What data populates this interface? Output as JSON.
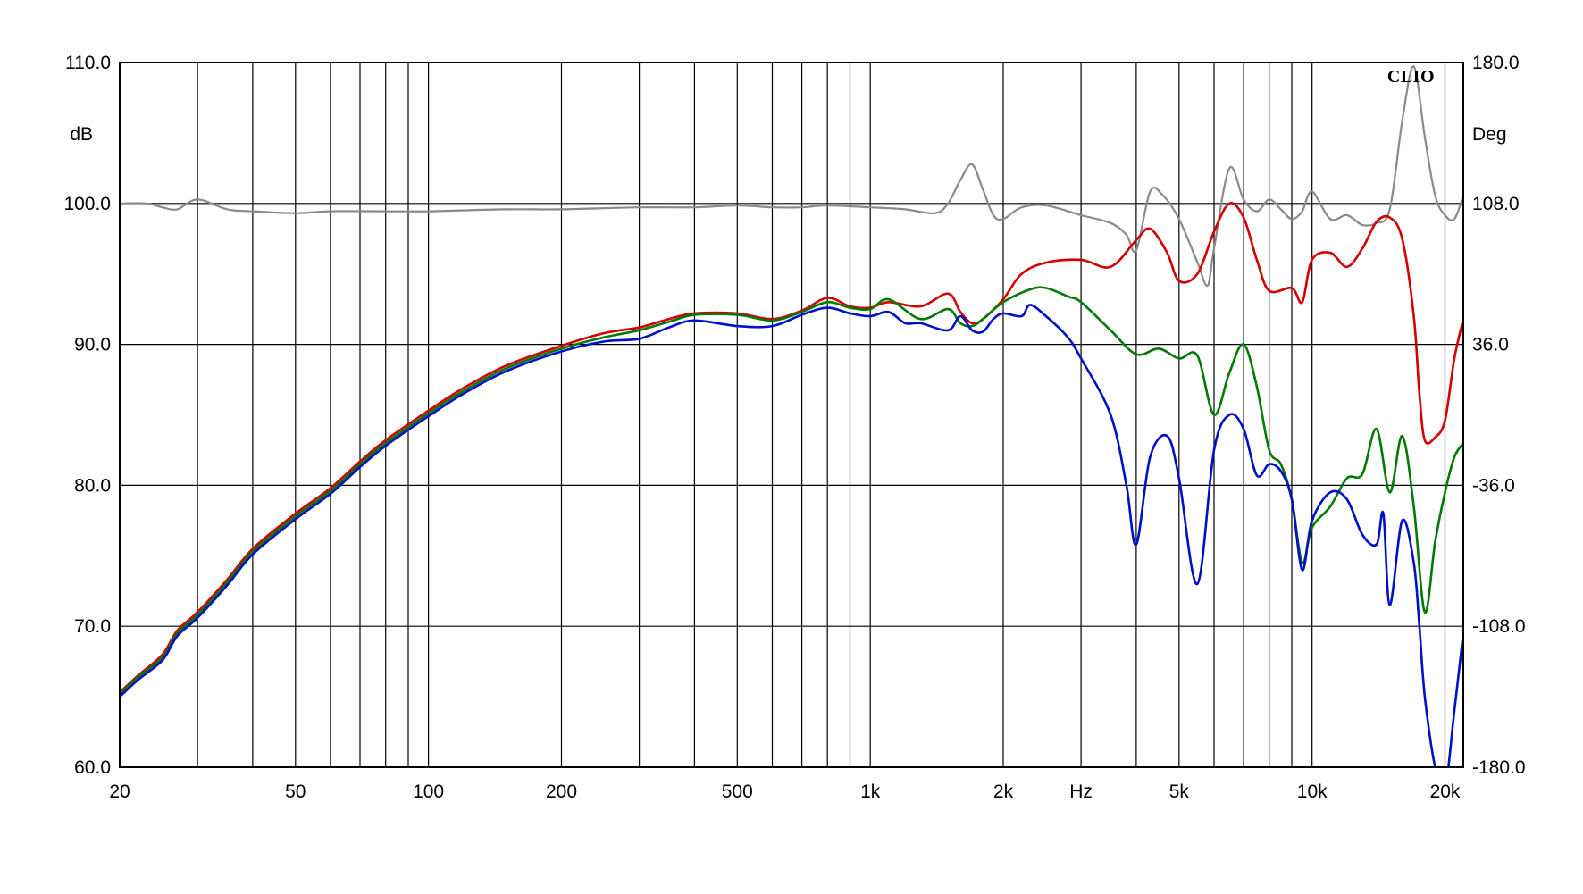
{
  "chart_data": {
    "type": "line",
    "brand": "CLIO",
    "xscale": "log",
    "xlim": [
      20,
      22000
    ],
    "ylim": [
      60,
      110
    ],
    "y2lim": [
      -180,
      180
    ],
    "ylabel_unit": "dB",
    "y2label_unit": "Deg",
    "xlabel_unit": "Hz",
    "x_tick_labels": [
      "20",
      "50",
      "100",
      "200",
      "500",
      "1k",
      "2k",
      "Hz",
      "5k",
      "10k",
      "20k"
    ],
    "x_tick_values": [
      20,
      50,
      100,
      200,
      500,
      1000,
      2000,
      3000,
      5000,
      10000,
      20000
    ],
    "y_tick_labels": [
      "110.0",
      "100.0",
      "90.0",
      "80.0",
      "70.0",
      "60.0"
    ],
    "y_tick_values": [
      110,
      100,
      90,
      80,
      70,
      60
    ],
    "y2_tick_labels": [
      "180.0",
      "108.0",
      "36.0",
      "-36.0",
      "-108.0",
      "-180.0"
    ],
    "y2_tick_values": [
      180,
      108,
      36,
      -36,
      -108,
      -180
    ],
    "x_grid": [
      20,
      30,
      40,
      50,
      60,
      70,
      80,
      90,
      100,
      200,
      300,
      400,
      500,
      600,
      700,
      800,
      900,
      1000,
      2000,
      3000,
      4000,
      5000,
      6000,
      7000,
      8000,
      9000,
      10000,
      20000
    ],
    "grid": true,
    "colors": {
      "red": "#d40000",
      "green": "#007a00",
      "blue": "#0010c8",
      "gray": "#8a8a8a"
    },
    "series": [
      {
        "color": "red",
        "axis": "left",
        "x": [
          20,
          22,
          25,
          27,
          30,
          35,
          40,
          50,
          60,
          70,
          80,
          100,
          120,
          150,
          200,
          250,
          300,
          350,
          400,
          500,
          600,
          700,
          800,
          900,
          1000,
          1100,
          1300,
          1500,
          1600,
          1700,
          1800,
          2000,
          2200,
          2500,
          3000,
          3500,
          4000,
          4300,
          4700,
          5000,
          5500,
          6000,
          6500,
          7000,
          7500,
          8000,
          9000,
          9500,
          10000,
          11000,
          12000,
          13000,
          14000,
          15000,
          16000,
          17000,
          17500,
          18000,
          19000,
          20000,
          21000,
          22000
        ],
        "y": [
          65.3,
          66.5,
          68.0,
          69.7,
          71.0,
          73.3,
          75.5,
          78.0,
          79.8,
          81.7,
          83.2,
          85.3,
          86.9,
          88.5,
          89.9,
          90.8,
          91.2,
          91.8,
          92.2,
          92.2,
          91.8,
          92.4,
          93.3,
          92.7,
          92.6,
          93.0,
          92.7,
          93.6,
          92.3,
          91.5,
          91.8,
          93.2,
          95.0,
          95.8,
          96.0,
          95.5,
          97.4,
          98.2,
          96.5,
          94.5,
          95.0,
          98.0,
          100.0,
          99.0,
          96.0,
          93.8,
          94.0,
          93.0,
          96.0,
          96.5,
          95.5,
          96.8,
          98.7,
          99.0,
          97.5,
          92.0,
          86.5,
          83.2,
          83.4,
          84.6,
          89.0,
          91.8
        ]
      },
      {
        "color": "green",
        "axis": "left",
        "x": [
          20,
          22,
          25,
          27,
          30,
          35,
          40,
          50,
          60,
          70,
          80,
          100,
          120,
          150,
          200,
          250,
          300,
          350,
          400,
          500,
          600,
          700,
          800,
          900,
          1000,
          1100,
          1300,
          1500,
          1600,
          1700,
          1800,
          2000,
          2300,
          2500,
          2800,
          3000,
          3500,
          4000,
          4500,
          5000,
          5500,
          6000,
          6500,
          7000,
          7500,
          8000,
          8500,
          9000,
          9500,
          10000,
          11000,
          12000,
          13000,
          14000,
          15000,
          16000,
          17000,
          18000,
          19000,
          20000,
          21000,
          22000
        ],
        "y": [
          65.2,
          66.4,
          67.8,
          69.5,
          70.8,
          73.1,
          75.3,
          77.8,
          79.6,
          81.5,
          83.0,
          85.1,
          86.7,
          88.3,
          89.7,
          90.5,
          91.0,
          91.6,
          92.1,
          92.1,
          91.7,
          92.3,
          93.0,
          92.6,
          92.5,
          93.2,
          91.8,
          92.5,
          91.5,
          91.3,
          91.8,
          93.0,
          93.9,
          94.0,
          93.4,
          93.0,
          91.0,
          89.3,
          89.7,
          89.0,
          89.2,
          85.0,
          88.0,
          90.0,
          87.0,
          82.5,
          81.5,
          79.0,
          74.5,
          77.0,
          78.5,
          80.5,
          80.8,
          84.0,
          79.5,
          83.5,
          78.5,
          71.0,
          76.0,
          79.5,
          82.0,
          83.0
        ]
      },
      {
        "color": "blue",
        "axis": "left",
        "x": [
          20,
          22,
          25,
          27,
          30,
          35,
          40,
          50,
          60,
          70,
          80,
          100,
          120,
          150,
          200,
          250,
          300,
          350,
          400,
          500,
          600,
          700,
          800,
          900,
          1000,
          1100,
          1200,
          1300,
          1500,
          1600,
          1700,
          1800,
          1900,
          2000,
          2200,
          2300,
          2500,
          2800,
          3000,
          3500,
          3800,
          4000,
          4300,
          4700,
          5000,
          5500,
          6000,
          6500,
          7000,
          7500,
          8000,
          8500,
          9000,
          9500,
          10000,
          11000,
          12000,
          13000,
          14000,
          14500,
          15000,
          16000,
          17000,
          17500,
          18000,
          19000,
          20000,
          21000,
          22000
        ],
        "y": [
          65.0,
          66.2,
          67.6,
          69.3,
          70.6,
          72.9,
          75.1,
          77.6,
          79.4,
          81.3,
          82.8,
          84.9,
          86.5,
          88.1,
          89.5,
          90.2,
          90.4,
          91.2,
          91.7,
          91.3,
          91.3,
          92.1,
          92.6,
          92.2,
          92.0,
          92.3,
          91.5,
          91.5,
          91.0,
          92.0,
          91.0,
          90.9,
          91.8,
          92.2,
          92.0,
          92.8,
          92.0,
          90.5,
          89.0,
          85.0,
          80.0,
          75.8,
          82.0,
          83.5,
          80.5,
          73.0,
          82.5,
          85.0,
          84.0,
          80.7,
          81.5,
          81.0,
          79.0,
          74.0,
          77.5,
          79.5,
          79.0,
          76.5,
          75.8,
          78.0,
          71.5,
          77.5,
          74.5,
          70.0,
          65.0,
          60.0,
          58.5,
          64.0,
          69.5
        ]
      },
      {
        "color": "gray",
        "axis": "right",
        "x": [
          20,
          23,
          25,
          27,
          30,
          35,
          40,
          50,
          60,
          80,
          100,
          150,
          200,
          300,
          400,
          500,
          600,
          700,
          800,
          1000,
          1200,
          1400,
          1500,
          1600,
          1700,
          1800,
          1900,
          2000,
          2200,
          2500,
          3000,
          3500,
          3800,
          4000,
          4300,
          4600,
          5000,
          5500,
          5800,
          6000,
          6500,
          7000,
          7500,
          8000,
          8500,
          9000,
          9500,
          10000,
          11000,
          12000,
          13000,
          14000,
          15000,
          16000,
          17000,
          18000,
          19000,
          20000,
          21000,
          22000
        ],
        "y": [
          108,
          108,
          106,
          105,
          110,
          105,
          104,
          103,
          104,
          104,
          104,
          105,
          105,
          106,
          106,
          107,
          106,
          106,
          107,
          106,
          105,
          103,
          108,
          120,
          128,
          115,
          102,
          100,
          106,
          107,
          102,
          98,
          92,
          84,
          114,
          112,
          100,
          78,
          66,
          85,
          126,
          110,
          104,
          110,
          105,
          100,
          104,
          114,
          100,
          102,
          97,
          98,
          105,
          150,
          178,
          142,
          112,
          102,
          100,
          112
        ]
      }
    ]
  }
}
